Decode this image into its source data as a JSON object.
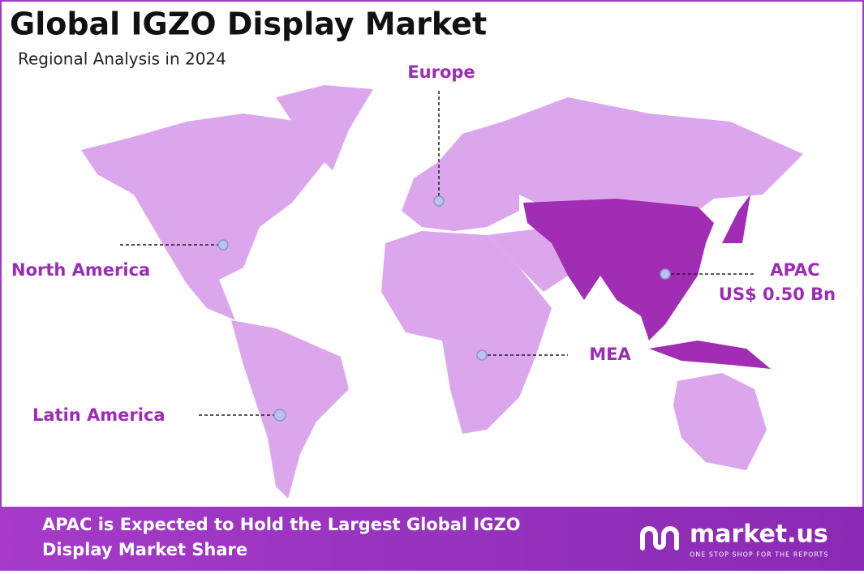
{
  "header": {
    "title": "Global IGZO Display Market",
    "subtitle": "Regional Analysis in 2024"
  },
  "regions": [
    {
      "label": "Europe"
    },
    {
      "label": "North America"
    },
    {
      "label": "APAC",
      "value_label": "US$ 0.50 Bn"
    },
    {
      "label": "MEA"
    },
    {
      "label": "Latin America"
    }
  ],
  "footer": {
    "lines": [
      "APAC is Expected to Hold the Largest Global IGZO",
      "Display Market Share"
    ]
  },
  "logo": {
    "name": "market.us",
    "tagline": "ONE STOP SHOP FOR THE REPORTS"
  }
}
